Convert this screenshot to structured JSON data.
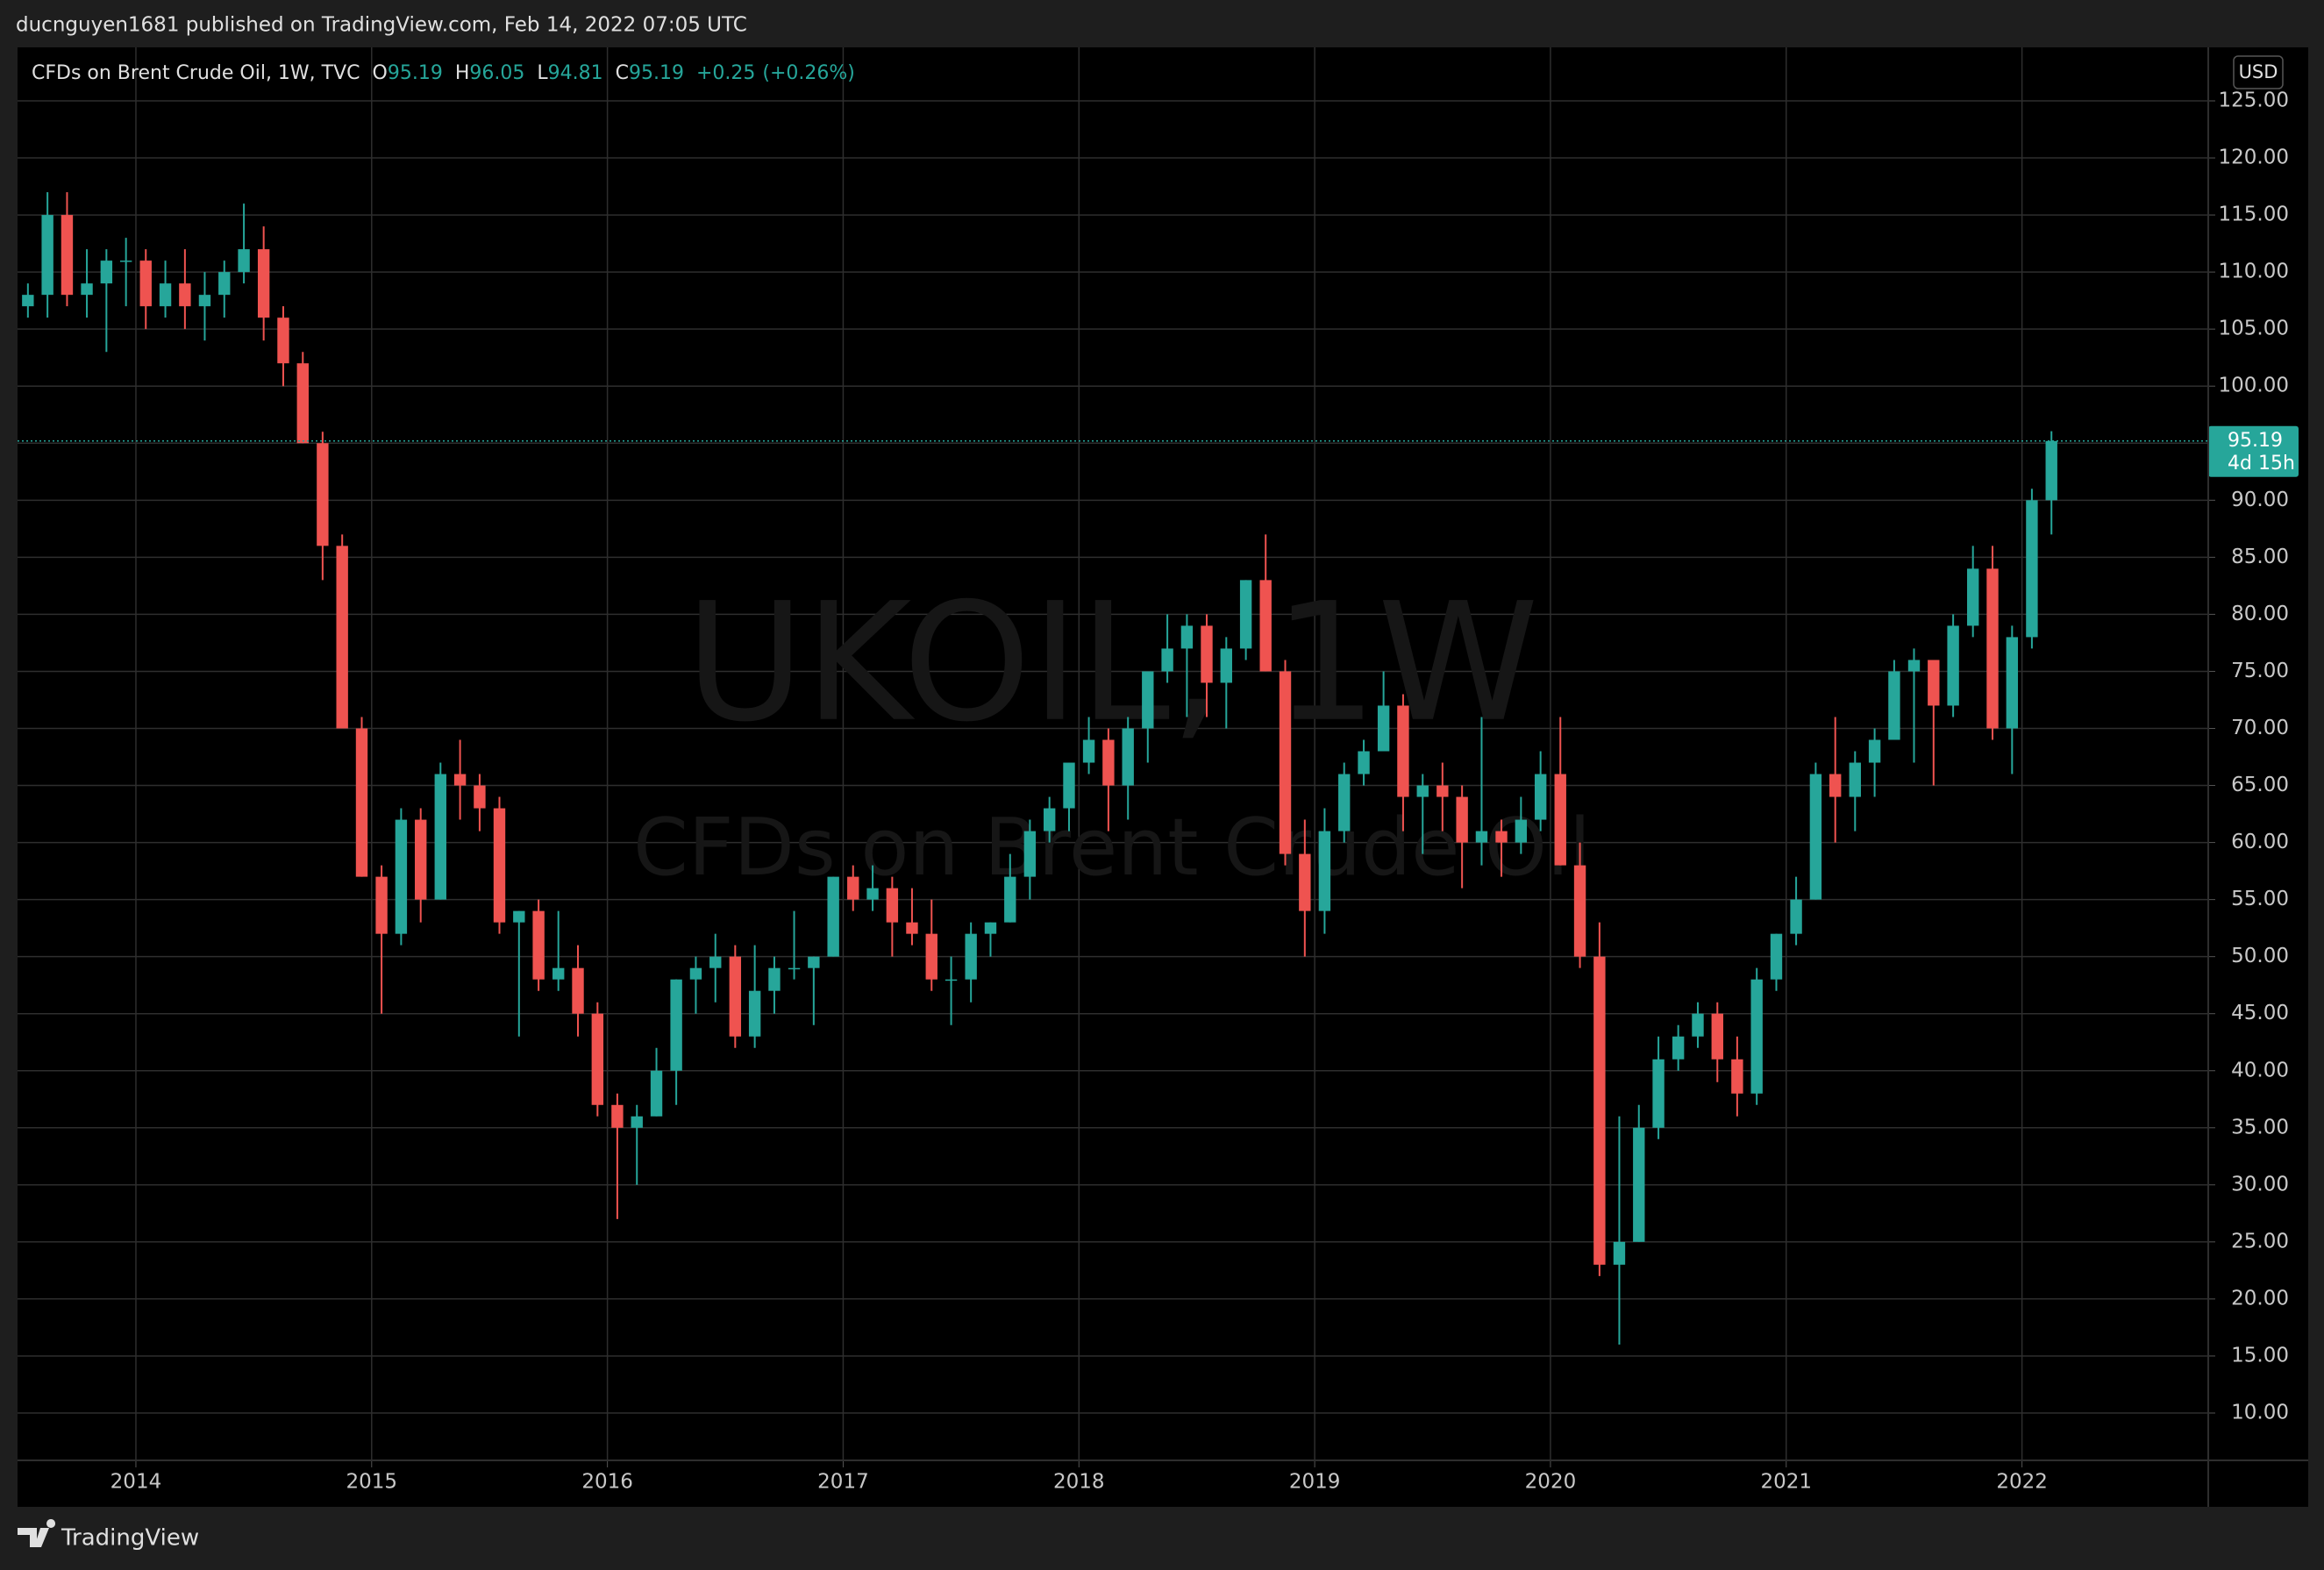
{
  "header": {
    "published": "ducnguyen1681 published on TradingView.com, Feb 14, 2022 07:05 UTC"
  },
  "footer": {
    "brand": "TradingView"
  },
  "chart_data": {
    "type": "candlestick",
    "watermark": "UKOIL, 1W",
    "watermark_subtitle": "CFDs on Brent Crude Oil",
    "currency": "USD",
    "legend": {
      "symbol": "CFDs on Brent Crude Oil, 1W, TVC",
      "fields": [
        {
          "name": "O",
          "value": 95.19
        },
        {
          "name": "H",
          "value": 96.05
        },
        {
          "name": "L",
          "value": 94.81
        },
        {
          "name": "C",
          "value": 95.19
        }
      ],
      "change": {
        "values": [
          0.25,
          0.26
        ],
        "value_labels": [
          "+0.25",
          "(+0.26%)"
        ]
      }
    },
    "last_price": 95.19,
    "countdown": "4d 15h",
    "up_color": "#26a69a",
    "down_color": "#ef5350",
    "grid": true,
    "xlim": [
      2013.498,
      2022.79
    ],
    "xticks": [
      2014,
      2015,
      2016,
      2017,
      2018,
      2019,
      2020,
      2021,
      2022
    ],
    "ylim": [
      5.85,
      129.69
    ],
    "yticks": [
      {
        "value": 10,
        "label": "10.00"
      },
      {
        "value": 15,
        "label": "15.00"
      },
      {
        "value": 20,
        "label": "20.00"
      },
      {
        "value": 25,
        "label": "25.00"
      },
      {
        "value": 30,
        "label": "30.00"
      },
      {
        "value": 35,
        "label": "35.00"
      },
      {
        "value": 40,
        "label": "40.00"
      },
      {
        "value": 45,
        "label": "45.00"
      },
      {
        "value": 50,
        "label": "50.00"
      },
      {
        "value": 55,
        "label": "55.00"
      },
      {
        "value": 60,
        "label": "60.00"
      },
      {
        "value": 65,
        "label": "65.00"
      },
      {
        "value": 70,
        "label": "70.00"
      },
      {
        "value": 75,
        "label": "75.00"
      },
      {
        "value": 80,
        "label": "80.00"
      },
      {
        "value": 85,
        "label": "85.00"
      },
      {
        "value": 90,
        "label": "90.00"
      },
      {
        "value": 95,
        "label": "95.00"
      },
      {
        "value": 100,
        "label": "100.00"
      },
      {
        "value": 105,
        "label": "105.00"
      },
      {
        "value": 110,
        "label": "110.00"
      },
      {
        "value": 115,
        "label": "115.00"
      },
      {
        "value": 120,
        "label": "120.00"
      },
      {
        "value": 125,
        "label": "125.00"
      }
    ],
    "x": [
      2013.542,
      2013.625,
      2013.708,
      2013.792,
      2013.875,
      2013.958,
      2014.042,
      2014.125,
      2014.208,
      2014.292,
      2014.375,
      2014.458,
      2014.542,
      2014.625,
      2014.708,
      2014.792,
      2014.875,
      2014.958,
      2015.042,
      2015.125,
      2015.208,
      2015.292,
      2015.375,
      2015.458,
      2015.542,
      2015.625,
      2015.708,
      2015.792,
      2015.875,
      2015.958,
      2016.042,
      2016.125,
      2016.208,
      2016.292,
      2016.375,
      2016.458,
      2016.542,
      2016.625,
      2016.708,
      2016.792,
      2016.875,
      2016.958,
      2017.042,
      2017.125,
      2017.208,
      2017.292,
      2017.375,
      2017.458,
      2017.542,
      2017.625,
      2017.708,
      2017.792,
      2017.875,
      2017.958,
      2018.042,
      2018.125,
      2018.208,
      2018.292,
      2018.375,
      2018.458,
      2018.542,
      2018.625,
      2018.708,
      2018.792,
      2018.875,
      2018.958,
      2019.042,
      2019.125,
      2019.208,
      2019.292,
      2019.375,
      2019.458,
      2019.542,
      2019.625,
      2019.708,
      2019.792,
      2019.875,
      2019.958,
      2020.042,
      2020.125,
      2020.208,
      2020.292,
      2020.375,
      2020.458,
      2020.542,
      2020.625,
      2020.708,
      2020.792,
      2020.875,
      2020.958,
      2021.042,
      2021.125,
      2021.208,
      2021.292,
      2021.375,
      2021.458,
      2021.542,
      2021.625,
      2021.708,
      2021.792,
      2021.875,
      2021.958,
      2022.042,
      2022.125
    ],
    "open": [
      107,
      108,
      115,
      108,
      109,
      111,
      111,
      107,
      109,
      107,
      108,
      110,
      112,
      106,
      102,
      95,
      86,
      70,
      57,
      52,
      62,
      55,
      66,
      65,
      63,
      53,
      54,
      48,
      49,
      45,
      37,
      35,
      36,
      40,
      48,
      49,
      50,
      43,
      47,
      49,
      49,
      50,
      57,
      55,
      56,
      53,
      52,
      48,
      48,
      52,
      53,
      57,
      61,
      63,
      67,
      69,
      65,
      70,
      75,
      77,
      79,
      74,
      77,
      83,
      75,
      59,
      54,
      61,
      66,
      68,
      72,
      64,
      65,
      64,
      60,
      61,
      60,
      62,
      66,
      58,
      50,
      23,
      25,
      35,
      41,
      43,
      45,
      41,
      38,
      48,
      52,
      55,
      66,
      64,
      67,
      69,
      75,
      76,
      72,
      79,
      84,
      70,
      78,
      90
    ],
    "high": [
      109,
      117,
      117,
      112,
      112,
      113,
      112,
      111,
      112,
      110,
      111,
      116,
      114,
      107,
      103,
      96,
      87,
      71,
      58,
      63,
      63,
      67,
      69,
      66,
      64,
      54,
      55,
      54,
      51,
      46,
      38,
      37,
      42,
      48,
      50,
      52,
      51,
      51,
      50,
      54,
      50,
      57,
      58,
      58,
      57,
      56,
      55,
      50,
      53,
      53,
      59,
      62,
      64,
      67,
      71,
      70,
      71,
      75,
      80,
      80,
      80,
      78,
      83,
      87,
      76,
      62,
      63,
      67,
      69,
      75,
      73,
      66,
      67,
      65,
      71,
      62,
      64,
      68,
      71,
      60,
      53,
      36,
      37,
      43,
      44,
      46,
      46,
      43,
      49,
      52,
      57,
      67,
      71,
      68,
      70,
      76,
      77,
      76,
      80,
      86,
      86,
      79,
      91,
      96.05
    ],
    "low": [
      106,
      106,
      107,
      106,
      103,
      107,
      105,
      106,
      105,
      104,
      106,
      109,
      104,
      100,
      95,
      83,
      70,
      57,
      45,
      51,
      53,
      55,
      62,
      61,
      52,
      43,
      47,
      47,
      43,
      36,
      27,
      30,
      36,
      37,
      45,
      46,
      42,
      42,
      45,
      48,
      44,
      50,
      54,
      54,
      50,
      51,
      47,
      44,
      46,
      50,
      53,
      55,
      60,
      61,
      66,
      61,
      62,
      67,
      74,
      71,
      71,
      70,
      76,
      75,
      58,
      50,
      52,
      60,
      65,
      68,
      61,
      59,
      61,
      56,
      58,
      57,
      59,
      61,
      58,
      49,
      22,
      16,
      25,
      34,
      40,
      42,
      39,
      36,
      37,
      47,
      51,
      55,
      60,
      61,
      64,
      69,
      67,
      65,
      71,
      78,
      69,
      66,
      77,
      87
    ],
    "close": [
      108,
      115,
      108,
      109,
      111,
      111,
      107,
      109,
      107,
      108,
      110,
      112,
      106,
      102,
      95,
      86,
      70,
      57,
      52,
      62,
      55,
      66,
      65,
      63,
      53,
      54,
      48,
      49,
      45,
      37,
      35,
      36,
      40,
      48,
      49,
      50,
      43,
      47,
      49,
      49,
      50,
      57,
      55,
      56,
      53,
      52,
      48,
      48,
      52,
      53,
      57,
      61,
      63,
      67,
      69,
      65,
      70,
      75,
      77,
      79,
      74,
      77,
      83,
      75,
      59,
      54,
      61,
      66,
      68,
      72,
      64,
      65,
      64,
      60,
      61,
      60,
      62,
      66,
      58,
      50,
      23,
      25,
      35,
      41,
      43,
      45,
      41,
      38,
      48,
      52,
      55,
      66,
      64,
      67,
      69,
      75,
      76,
      72,
      79,
      84,
      70,
      78,
      90,
      95.19
    ]
  }
}
